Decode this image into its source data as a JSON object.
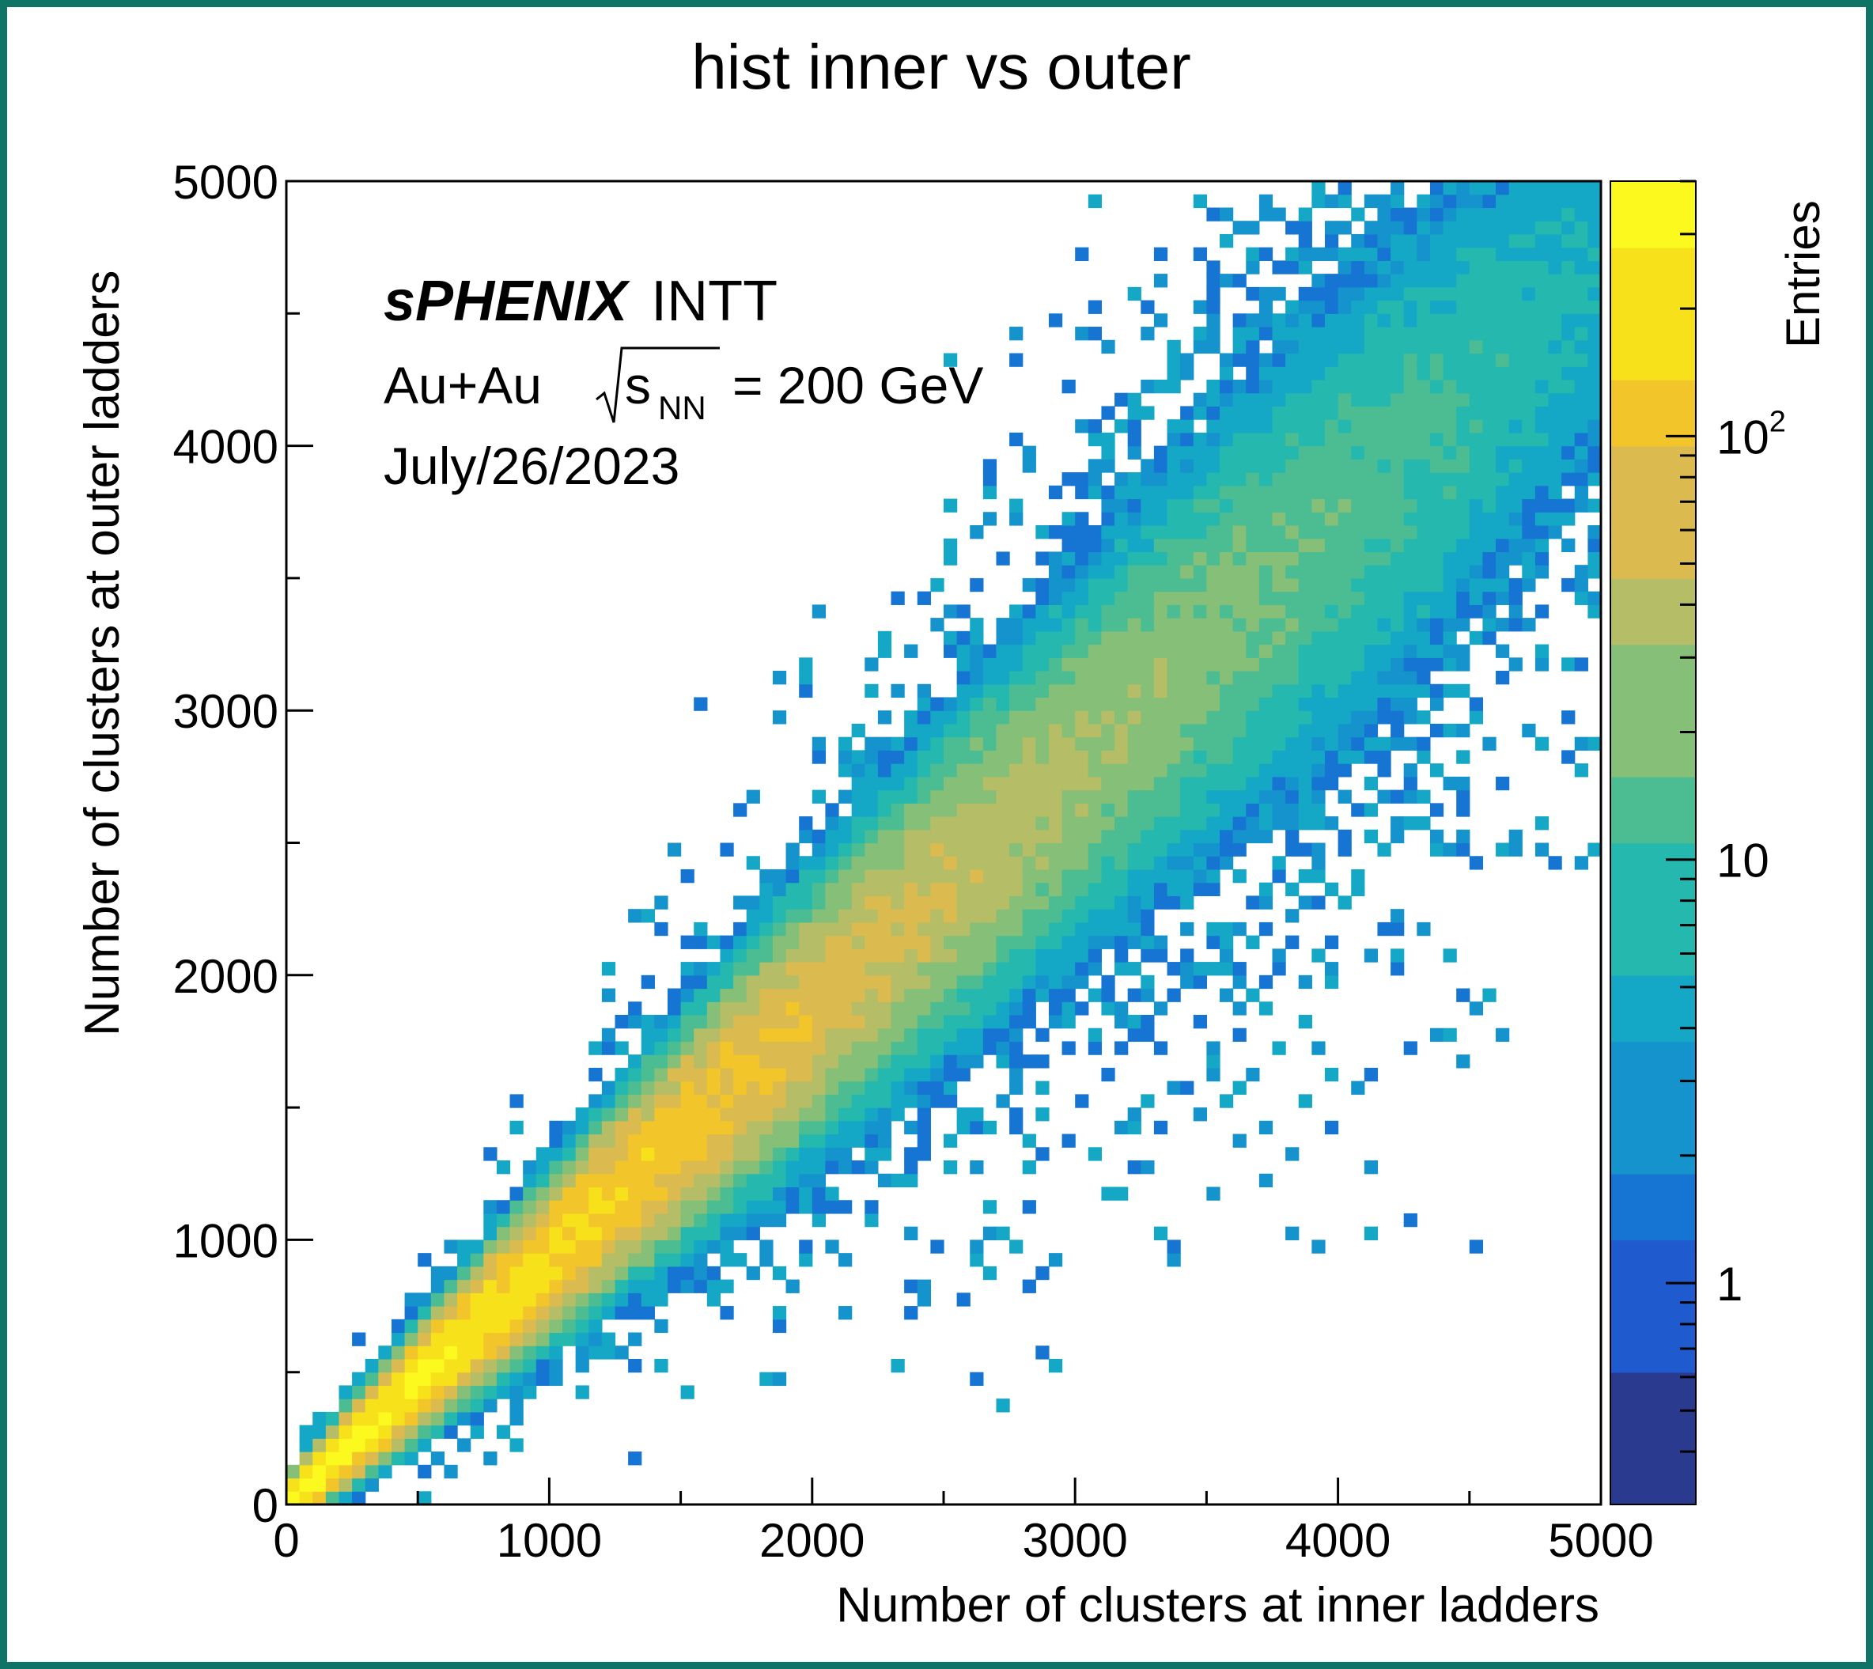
{
  "chart_data": {
    "type": "heatmap",
    "title": "hist inner vs outer",
    "xlabel": "Number of clusters at inner ladders",
    "ylabel": "Number of clusters at outer ladders",
    "xlim": [
      0,
      5000
    ],
    "ylim": [
      0,
      5000
    ],
    "x_ticks": [
      "0",
      "1000",
      "2000",
      "3000",
      "4000",
      "5000"
    ],
    "y_ticks": [
      "0",
      "1000",
      "2000",
      "3000",
      "4000",
      "5000"
    ],
    "colorbar": {
      "label": "Entries",
      "scale": "log",
      "range": [
        0.3,
        400
      ],
      "tick_labels": [
        {
          "value": 1,
          "text": "1"
        },
        {
          "value": 10,
          "text": "10"
        },
        {
          "value": 100,
          "text": "10",
          "sup": "2"
        }
      ]
    },
    "bin_width": 50,
    "correlation": {
      "slope": 0.93,
      "peak_entries": 400,
      "description": "outer ≈ 0.93 × inner, dense near origin"
    },
    "annotations": {
      "experiment": "sPHENIX",
      "detector": "INTT",
      "collision_prefix": "Au+Au",
      "sqrt_s": "s",
      "sqrt_sub": "NN",
      "energy": "= 200 GeV",
      "date": "July/26/2023"
    },
    "grid": false,
    "palette": [
      "#2a3a8f",
      "#1f5bcf",
      "#1675d2",
      "#1593cd",
      "#14a8c6",
      "#25b8ae",
      "#4cbd92",
      "#86bf78",
      "#b5bd66",
      "#dbbb4f",
      "#f2c52a",
      "#f7e11b",
      "#fbf91d"
    ]
  }
}
